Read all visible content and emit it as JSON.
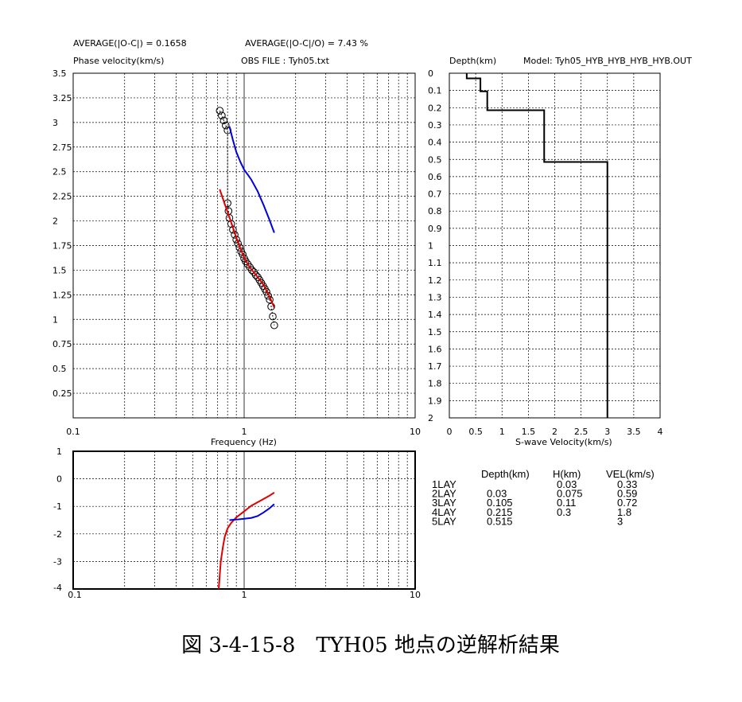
{
  "header": {
    "avg_abs": "AVERAGE(|O-C|) = 0.1658",
    "avg_rel": "AVERAGE(|O-C|/O) = 7.43 %",
    "ylabel": "Phase velocity(km/s)",
    "obs_file": "OBS FILE : Tyh05.txt",
    "depth_label": "Depth(km)",
    "model": "Model: Tyh05_HYB_HYB_HYB_HYB.OUT"
  },
  "caption": "図 3-4-15-8　TYH05 地点の逆解析結果",
  "colors": {
    "observed": "#000000",
    "fit_red": "#e00000",
    "fit_blue": "#0000e0",
    "profile": "#000000"
  },
  "chart_data": [
    {
      "type": "scatter",
      "name": "dispersion-curve",
      "xlabel": "Frequency (Hz)",
      "ylabel": "Phase velocity(km/s)",
      "xscale": "log",
      "xlim": [
        0.1,
        10
      ],
      "ylim": [
        0,
        3.5
      ],
      "xticks": [
        "0.1",
        "1",
        "10"
      ],
      "yticks": [
        "3.5",
        "3.25",
        "3",
        "2.75",
        "2.5",
        "2.25",
        "2",
        "1.75",
        "1.5",
        "1.25",
        "1",
        "0.75",
        "0.5",
        "0.25"
      ],
      "grid": true,
      "series": [
        {
          "marker": "circle",
          "color": "#000000",
          "x": [
            0.72,
            0.74,
            0.76,
            0.78,
            0.8,
            0.8,
            0.81,
            0.82,
            0.84,
            0.86,
            0.88,
            0.9,
            0.92,
            0.94,
            0.96,
            0.98,
            1.0,
            1.02,
            1.05,
            1.08,
            1.11,
            1.14,
            1.17,
            1.2,
            1.23,
            1.26,
            1.29,
            1.32,
            1.35,
            1.38,
            1.41,
            1.44,
            1.47,
            1.5
          ],
          "y": [
            3.12,
            3.07,
            3.02,
            2.97,
            2.92,
            2.18,
            2.1,
            2.03,
            1.97,
            1.91,
            1.86,
            1.81,
            1.77,
            1.73,
            1.69,
            1.66,
            1.62,
            1.59,
            1.56,
            1.53,
            1.5,
            1.48,
            1.45,
            1.43,
            1.4,
            1.37,
            1.34,
            1.31,
            1.28,
            1.24,
            1.2,
            1.13,
            1.03,
            0.94
          ]
        },
        {
          "color": "#e00000",
          "x": [
            0.72,
            0.76,
            0.8,
            0.85,
            0.9,
            0.95,
            1.0,
            1.05,
            1.1,
            1.2,
            1.3,
            1.4,
            1.5
          ],
          "y": [
            2.32,
            2.2,
            2.09,
            1.96,
            1.83,
            1.72,
            1.63,
            1.56,
            1.51,
            1.43,
            1.35,
            1.24,
            1.12
          ]
        },
        {
          "color": "#0000e0",
          "x": [
            0.82,
            0.86,
            0.9,
            0.95,
            1.0,
            1.05,
            1.1,
            1.2,
            1.3,
            1.4,
            1.5
          ],
          "y": [
            2.96,
            2.82,
            2.7,
            2.6,
            2.52,
            2.47,
            2.42,
            2.3,
            2.16,
            2.02,
            1.88
          ]
        }
      ]
    },
    {
      "type": "line",
      "name": "vs-profile",
      "xlabel": "S-wave Velocity(km/s)",
      "ylabel": "Depth(km)",
      "xlim": [
        0,
        4
      ],
      "ylim": [
        0,
        2
      ],
      "y_inverted": true,
      "xticks": [
        "0",
        "0.5",
        "1",
        "1.5",
        "2",
        "2.5",
        "3",
        "3.5",
        "4"
      ],
      "yticks": [
        "0",
        "0.1",
        "0.2",
        "0.3",
        "0.4",
        "0.5",
        "0.6",
        "0.7",
        "0.8",
        "0.9",
        "1",
        "1.1",
        "1.2",
        "1.3",
        "1.4",
        "1.5",
        "1.6",
        "1.7",
        "1.8",
        "1.9",
        "2"
      ],
      "grid": true,
      "series": [
        {
          "color": "#000000",
          "x": [
            0.33,
            0.33,
            0.59,
            0.59,
            0.72,
            0.72,
            1.8,
            1.8,
            3,
            3
          ],
          "y": [
            0,
            0.03,
            0.03,
            0.105,
            0.105,
            0.215,
            0.215,
            0.515,
            0.515,
            2
          ]
        }
      ]
    },
    {
      "type": "line",
      "name": "residual-plot",
      "xscale": "log",
      "xlim": [
        0.1,
        10
      ],
      "ylim": [
        -4,
        1
      ],
      "xticks": [
        "0.1",
        "1",
        "10"
      ],
      "yticks": [
        "1",
        "0",
        "-1",
        "-2",
        "-3",
        "-4"
      ],
      "grid": true,
      "series": [
        {
          "color": "#e00000",
          "x": [
            0.71,
            0.72,
            0.73,
            0.75,
            0.77,
            0.8,
            0.84,
            0.9,
            1.0,
            1.1,
            1.2,
            1.3,
            1.4,
            1.5
          ],
          "y": [
            -4.0,
            -3.5,
            -3.0,
            -2.5,
            -2.1,
            -1.8,
            -1.6,
            -1.4,
            -1.18,
            -0.98,
            -0.85,
            -0.73,
            -0.62,
            -0.5
          ]
        },
        {
          "color": "#0000e0",
          "x": [
            0.82,
            0.9,
            1.0,
            1.1,
            1.2,
            1.3,
            1.4,
            1.5
          ],
          "y": [
            -1.5,
            -1.48,
            -1.45,
            -1.42,
            -1.35,
            -1.22,
            -1.08,
            -0.92
          ]
        }
      ]
    },
    {
      "type": "table",
      "name": "layer-table",
      "columns": [
        "",
        "Depth(km)",
        "H(km)",
        "VEL(km/s)"
      ],
      "rows": [
        [
          "1LAY",
          "",
          "0.03",
          "0.33"
        ],
        [
          "2LAY",
          "0.03",
          "0.075",
          "0.59"
        ],
        [
          "3LAY",
          "0.105",
          "0.11",
          "0.72"
        ],
        [
          "4LAY",
          "0.215",
          "0.3",
          "1.8"
        ],
        [
          "5LAY",
          "0.515",
          "",
          "3"
        ]
      ]
    }
  ]
}
